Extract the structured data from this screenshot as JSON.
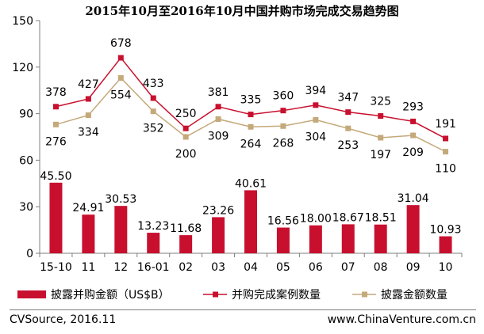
{
  "chart_data": {
    "type": "bar+line",
    "title": "2015年10月至2016年10月中国并购市场完成交易趋势图",
    "categories": [
      "15-10",
      "11",
      "12",
      "16-01",
      "02",
      "03",
      "04",
      "05",
      "06",
      "07",
      "08",
      "09",
      "10"
    ],
    "ylim": [
      0,
      150
    ],
    "yticks": [
      0,
      30,
      60,
      90,
      120,
      150
    ],
    "grid": false,
    "legend_position": "bottom",
    "series": [
      {
        "name": "披露并购金额（US$B）",
        "type": "bar",
        "values": [
          45.5,
          24.91,
          30.53,
          13.23,
          11.68,
          23.26,
          40.61,
          16.56,
          18.0,
          18.67,
          18.51,
          31.04,
          10.93
        ],
        "labels": [
          "45.50",
          "24.91",
          "30.53",
          "13.23",
          "11.68",
          "23.26",
          "40.61",
          "16.56",
          "18.00",
          "18.67",
          "18.51",
          "31.04",
          "10.93"
        ]
      },
      {
        "name": "并购完成案例数量",
        "type": "line",
        "values": [
          378,
          427,
          678,
          433,
          250,
          381,
          335,
          360,
          394,
          347,
          325,
          293,
          191
        ],
        "plotted_values": [
          94.5,
          99.5,
          126,
          100,
          80.5,
          94.5,
          89.5,
          92,
          95.5,
          91,
          88.5,
          85,
          74
        ],
        "labels": [
          "378",
          "427",
          "678",
          "433",
          "250",
          "381",
          "335",
          "360",
          "394",
          "347",
          "325",
          "293",
          "191"
        ]
      },
      {
        "name": "披露金额数量",
        "type": "line",
        "values": [
          276,
          334,
          554,
          352,
          200,
          309,
          264,
          268,
          304,
          253,
          197,
          209,
          110
        ],
        "plotted_values": [
          83,
          89,
          113,
          91.5,
          75,
          86.5,
          81.5,
          82,
          86,
          80.5,
          74.5,
          76,
          65.5
        ],
        "labels": [
          "276",
          "334",
          "554",
          "352",
          "200",
          "309",
          "264",
          "268",
          "304",
          "253",
          "197",
          "209",
          "110"
        ]
      }
    ],
    "colors": {
      "bar": "#c8102e",
      "line_cases": "#c8102e",
      "line_amount_count": "#c4a97a",
      "axis": "#7f7f7f"
    }
  },
  "footer": {
    "source": "CVSource, 2016.11",
    "website": "www.ChinaVenture.com.cn"
  }
}
